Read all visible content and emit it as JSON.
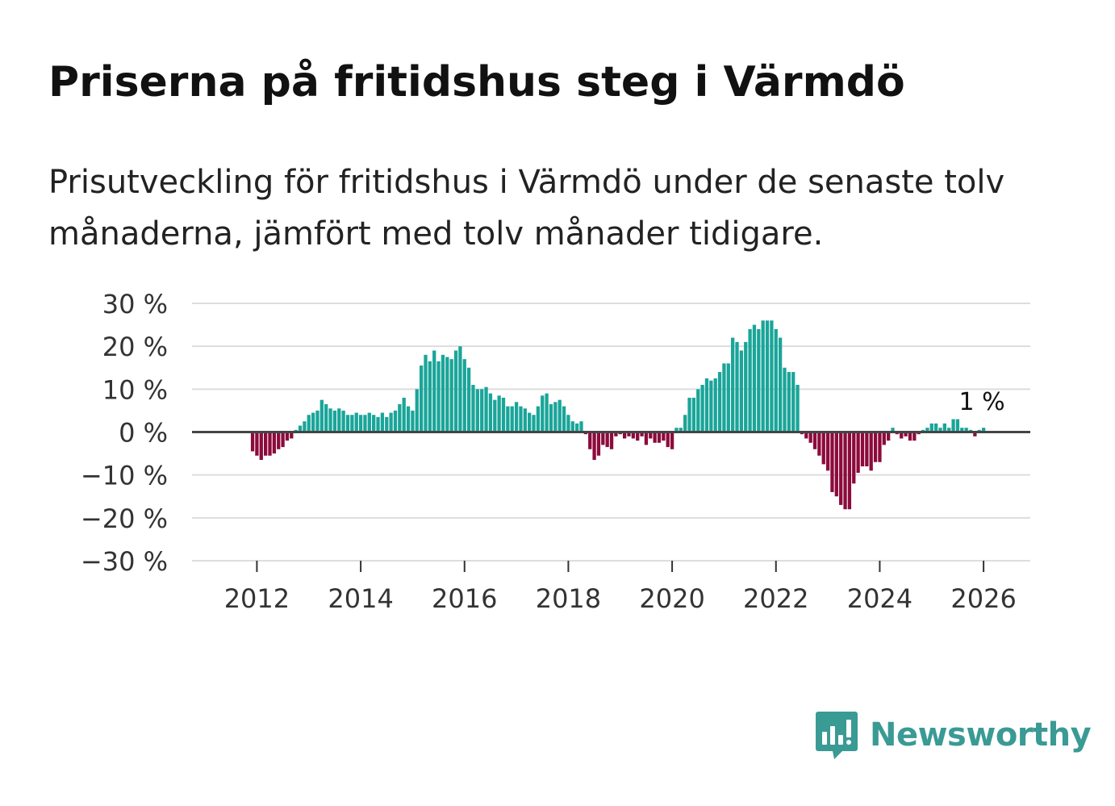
{
  "title": "Priserna på fritidshus steg i Värmdö",
  "subtitle": "Prisutveckling för fritidshus i Värmdö under de senaste tolv månaderna, jämfört med tolv månader tidigare.",
  "brand": {
    "name": "Newsworthy",
    "logo_icon": "bar-chart-speech-bubble-icon"
  },
  "colors": {
    "positive": "#1aa599",
    "negative": "#8c0a3c",
    "zero_line": "#444444",
    "grid": "#dddddd",
    "brand": "#3a9a94"
  },
  "chart_data": {
    "type": "bar",
    "title": "Priserna på fritidshus steg i Värmdö",
    "xlabel": "",
    "ylabel": "",
    "ylim": [
      -30,
      30
    ],
    "y_ticks": [
      30,
      20,
      10,
      0,
      -10,
      -20,
      -30
    ],
    "y_tick_labels": [
      "30 %",
      "20 %",
      "10 %",
      "0 %",
      "−10 %",
      "−20 %",
      "−30 %"
    ],
    "x_ticks": [
      2012,
      2014,
      2016,
      2018,
      2020,
      2022,
      2024,
      2026
    ],
    "x_tick_labels": [
      "2012",
      "2014",
      "2016",
      "2018",
      "2020",
      "2022",
      "2024",
      "2026"
    ],
    "x_range": [
      2010.75,
      2026.9
    ],
    "start": {
      "year": 2011,
      "month": 12
    },
    "bar_width_months": 0.8,
    "last_value_label": "1 %",
    "values": [
      -4.5,
      -5.5,
      -6.5,
      -5.5,
      -5.5,
      -5,
      -4,
      -3.5,
      -2,
      -1.5,
      0.5,
      1.5,
      2.5,
      4,
      4.5,
      5,
      7.5,
      6.5,
      5.5,
      5,
      5.5,
      5,
      4,
      4,
      4.5,
      4,
      4,
      4.5,
      4,
      3.5,
      4.5,
      3.5,
      4.5,
      5,
      6.5,
      8,
      6,
      5,
      10,
      15.5,
      18,
      16.5,
      19,
      16.5,
      18,
      17.5,
      17,
      19,
      20,
      17,
      15,
      11,
      10,
      10,
      10.5,
      9,
      7.5,
      8.5,
      8,
      6,
      6,
      7,
      6,
      5.5,
      4.5,
      4,
      6,
      8.5,
      9,
      6.5,
      7,
      7.5,
      6,
      4,
      2.5,
      2,
      2.5,
      -0.5,
      -4,
      -6.5,
      -5.5,
      -3,
      -3.5,
      -4,
      -1,
      -0.5,
      -1.5,
      -1,
      -1.5,
      -2,
      -1,
      -3,
      -1.5,
      -2.5,
      -2.5,
      -2,
      -3.5,
      -4,
      1,
      1,
      4,
      8,
      8,
      10,
      11,
      12.5,
      12,
      12.5,
      14,
      16,
      16,
      22,
      21,
      19,
      21,
      24,
      25,
      24,
      26,
      26,
      26,
      24,
      22,
      15,
      14,
      14,
      11,
      -0.5,
      -1.5,
      -2.5,
      -4,
      -5.5,
      -7.5,
      -9,
      -14,
      -15,
      -17,
      -18,
      -18,
      -12,
      -9.5,
      -8,
      -8,
      -9,
      -7,
      -7,
      -3,
      -2,
      1,
      -0.5,
      -1.5,
      -1,
      -2,
      -2,
      -0.5,
      0.5,
      1,
      2,
      2,
      1,
      2,
      1,
      3,
      3,
      1,
      1,
      0.5,
      -1,
      0.5,
      1
    ]
  }
}
